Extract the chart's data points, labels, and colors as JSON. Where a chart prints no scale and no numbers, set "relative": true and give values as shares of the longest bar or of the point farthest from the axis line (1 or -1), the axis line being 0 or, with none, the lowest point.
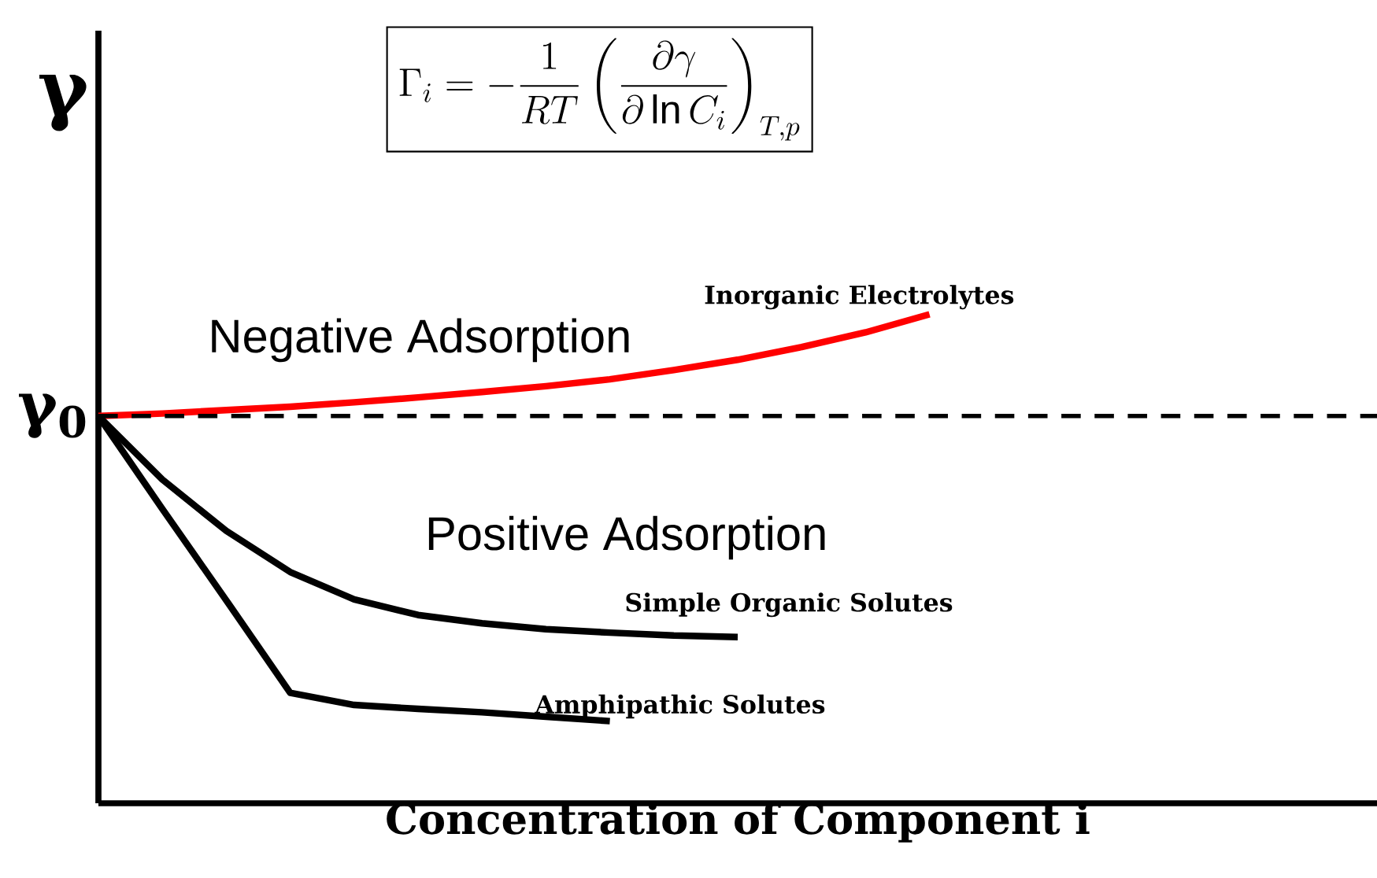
{
  "chart_data": {
    "type": "line",
    "relative": true,
    "xlabel": "Concentration of Component i",
    "ylabel": "γ",
    "categories": [
      null,
      null,
      null,
      null,
      null,
      null,
      null,
      null,
      null,
      null,
      null,
      null,
      null,
      null,
      null,
      null,
      null,
      null,
      null,
      null,
      null
    ],
    "series": [
      {
        "name": "Inorganic Electrolytes",
        "color": "#ff0000",
        "values": [
          0.792,
          0.797,
          0.804,
          0.811,
          0.82,
          0.83,
          0.841,
          0.853,
          0.867,
          0.886,
          0.907,
          0.933,
          0.963,
          1.0,
          null,
          null,
          null,
          null,
          null,
          null,
          null
        ]
      },
      {
        "name": "Simple Organic Solutes",
        "color": "#000000",
        "values": [
          0.792,
          0.662,
          0.557,
          0.473,
          0.417,
          0.385,
          0.368,
          0.356,
          0.349,
          0.343,
          0.34,
          null,
          null,
          null,
          null,
          null,
          null,
          null,
          null,
          null,
          null
        ]
      },
      {
        "name": "Amphipathic Solutes",
        "color": "#000000",
        "values": [
          0.792,
          0.602,
          0.415,
          0.226,
          0.201,
          0.193,
          0.186,
          0.177,
          0.168,
          null,
          null,
          null,
          null,
          null,
          null,
          null,
          null,
          null,
          null,
          null,
          null
        ]
      }
    ],
    "ref_lines": [
      {
        "axis": "y",
        "value": 0.792,
        "label": "γ$_{0}$",
        "color": "#000000",
        "line_style": "dashed"
      }
    ],
    "annotations": [
      "\\Gamma_i = -\\frac{1}{RT}\\left(\\frac{\\partial\\gamma}{\\partial\\ln C_i}\\right)_{T,p}",
      "Negative Adsorption",
      "Positive Adsorption"
    ]
  }
}
